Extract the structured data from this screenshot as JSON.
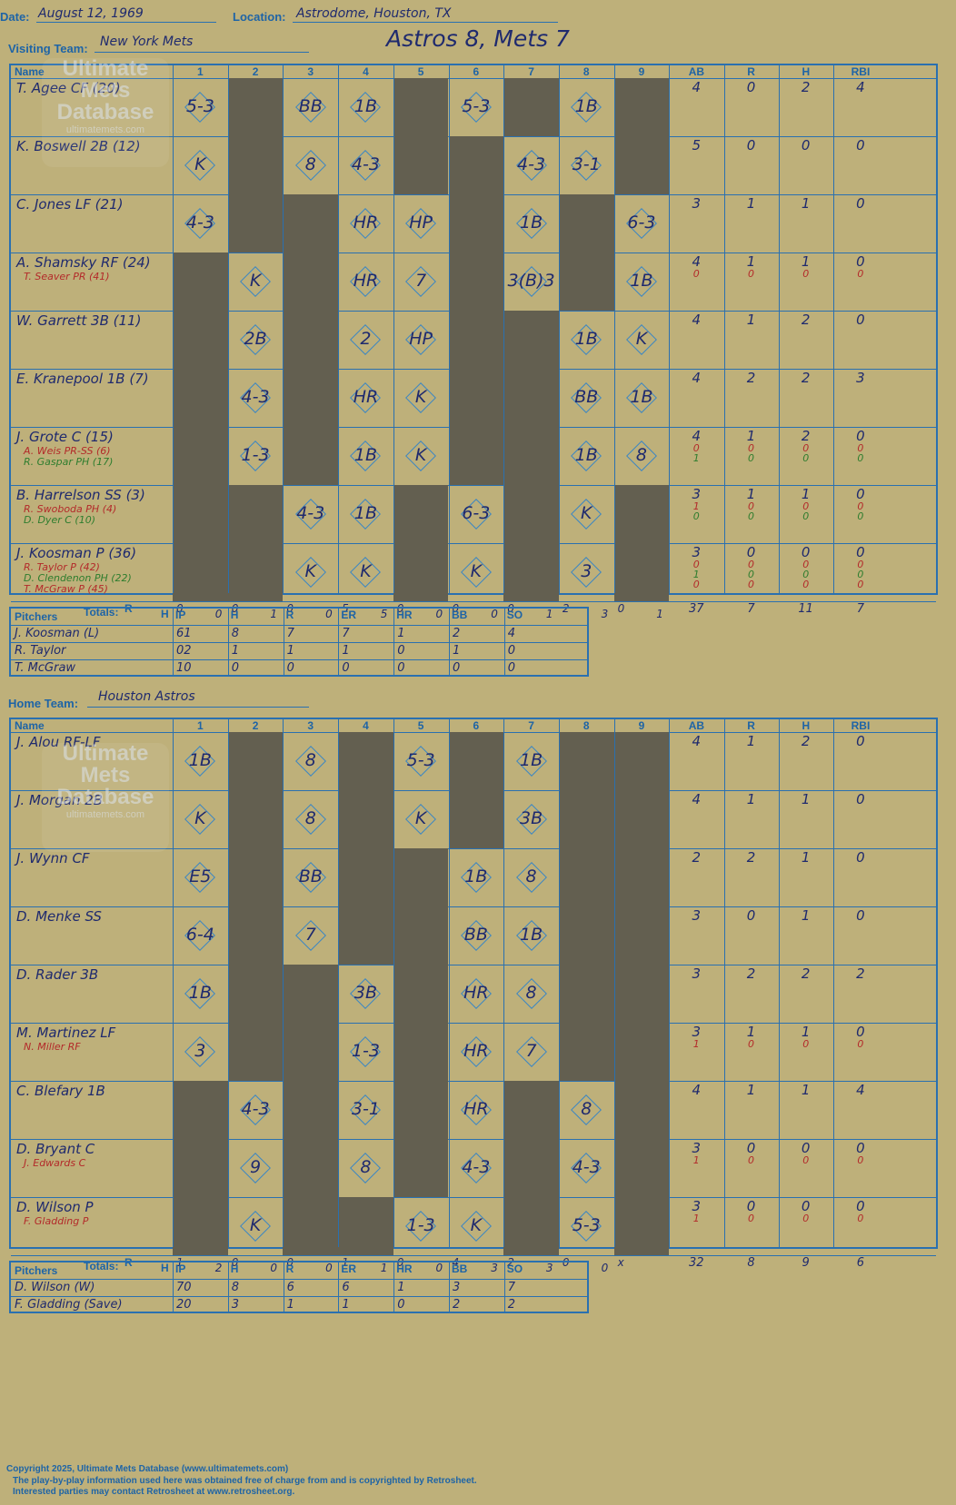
{
  "game": {
    "date_label": "Date:",
    "date": "August 12, 1969",
    "location_label": "Location:",
    "location": "Astrodome, Houston, TX",
    "visiting_label": "Visiting Team:",
    "visiting_team": "New York Mets",
    "home_label": "Home Team:",
    "home_team": "Houston Astros",
    "score_title": "Astros 8, Mets 7"
  },
  "headers": {
    "name": "Name",
    "innings": [
      "1",
      "2",
      "3",
      "4",
      "5",
      "6",
      "7",
      "8",
      "9"
    ],
    "stats": [
      "AB",
      "R",
      "H",
      "RBI"
    ],
    "totals": "Totals:",
    "runs_short": "R",
    "hits_short": "H",
    "pitchers": "Pitchers",
    "pitch_cols": [
      "IP",
      "H",
      "R",
      "ER",
      "HR",
      "BB",
      "SO"
    ]
  },
  "visitors": {
    "players": [
      {
        "name": "T. Agee CF (20)",
        "subs": [],
        "stats": [
          "4",
          "0",
          "2",
          "4"
        ],
        "sub_stats": []
      },
      {
        "name": "K. Boswell 2B (12)",
        "subs": [],
        "stats": [
          "5",
          "0",
          "0",
          "0"
        ],
        "sub_stats": []
      },
      {
        "name": "C. Jones LF (21)",
        "subs": [],
        "stats": [
          "3",
          "1",
          "1",
          "0"
        ],
        "sub_stats": []
      },
      {
        "name": "A. Shamsky RF (24)",
        "subs": [
          "T. Seaver PR (41)"
        ],
        "stats": [
          "4",
          "1",
          "1",
          "0"
        ],
        "sub_stats": [
          [
            "0",
            "0",
            "0",
            "0"
          ]
        ]
      },
      {
        "name": "W. Garrett 3B (11)",
        "subs": [],
        "stats": [
          "4",
          "1",
          "2",
          "0"
        ],
        "sub_stats": []
      },
      {
        "name": "E. Kranepool 1B (7)",
        "subs": [],
        "stats": [
          "4",
          "2",
          "2",
          "3"
        ],
        "sub_stats": []
      },
      {
        "name": "J. Grote C (15)",
        "subs": [
          "A. Weis PR-SS (6)",
          "R. Gaspar PH (17)"
        ],
        "stats": [
          "4",
          "1",
          "2",
          "0"
        ],
        "sub_stats": [
          [
            "0",
            "0",
            "0",
            "0"
          ],
          [
            "1",
            "0",
            "0",
            "0"
          ]
        ]
      },
      {
        "name": "B. Harrelson SS (3)",
        "subs": [
          "R. Swoboda PH (4)",
          "D. Dyer C (10)"
        ],
        "stats": [
          "3",
          "1",
          "1",
          "0"
        ],
        "sub_stats": [
          [
            "1",
            "0",
            "0",
            "0"
          ],
          [
            "0",
            "0",
            "0",
            "0"
          ]
        ]
      },
      {
        "name": "J. Koosman P (36)",
        "subs": [
          "R. Taylor P (42)",
          "D. Clendenon PH (22)",
          "T. McGraw P (45)"
        ],
        "stats": [
          "3",
          "0",
          "0",
          "0"
        ],
        "sub_stats": [
          [
            "0",
            "0",
            "0",
            "0"
          ],
          [
            "1",
            "0",
            "0",
            "0"
          ],
          [
            "0",
            "0",
            "0",
            "0"
          ]
        ]
      }
    ],
    "plays": [
      [
        [
          "1",
          "5-3"
        ],
        [
          "3",
          "BB"
        ],
        [
          "4",
          "1B"
        ],
        [
          "6",
          "5-3"
        ],
        [
          "8",
          "1B"
        ]
      ],
      [
        [
          "1",
          "K"
        ],
        [
          "3",
          "8"
        ],
        [
          "4",
          "4-3"
        ],
        [
          "7",
          "4-3"
        ],
        [
          "8",
          "3-1"
        ]
      ],
      [
        [
          "1",
          "4-3"
        ],
        [
          "4",
          "HR"
        ],
        [
          "5",
          "HP"
        ],
        [
          "7",
          "1B"
        ],
        [
          "9",
          "6-3"
        ]
      ],
      [
        [
          "2",
          "K"
        ],
        [
          "4",
          "HR"
        ],
        [
          "5",
          "7"
        ],
        [
          "7",
          "3(B)3"
        ],
        [
          "9",
          "1B"
        ]
      ],
      [
        [
          "2",
          "2B"
        ],
        [
          "4",
          "2"
        ],
        [
          "5",
          "HP"
        ],
        [
          "8",
          "1B"
        ],
        [
          "9",
          "K"
        ]
      ],
      [
        [
          "2",
          "4-3"
        ],
        [
          "4",
          "HR"
        ],
        [
          "5",
          "K"
        ],
        [
          "8",
          "BB"
        ],
        [
          "9",
          "1B"
        ]
      ],
      [
        [
          "2",
          "1-3"
        ],
        [
          "4",
          "1B"
        ],
        [
          "5",
          "K"
        ],
        [
          "8",
          "1B"
        ],
        [
          "9",
          "8"
        ]
      ],
      [
        [
          "3",
          "4-3"
        ],
        [
          "4",
          "1B"
        ],
        [
          "6",
          "6-3"
        ],
        [
          "8",
          "K"
        ]
      ],
      [
        [
          "3",
          "K"
        ],
        [
          "4",
          "K"
        ],
        [
          "6",
          "K"
        ],
        [
          "8",
          "3"
        ]
      ]
    ],
    "dark": [
      [
        2,
        5,
        7,
        9
      ],
      [
        2,
        5,
        6,
        9
      ],
      [
        2,
        3,
        6,
        8
      ],
      [
        1,
        3,
        6,
        8
      ],
      [
        1,
        3,
        6,
        7
      ],
      [
        1,
        3,
        6,
        7
      ],
      [
        1,
        3,
        6,
        7
      ],
      [
        1,
        2,
        5,
        7,
        9
      ],
      [
        1,
        2,
        5,
        7,
        9
      ]
    ],
    "totals": [
      [
        "0",
        "0"
      ],
      [
        "0",
        "1"
      ],
      [
        "0",
        "0"
      ],
      [
        "5",
        "5"
      ],
      [
        "0",
        "0"
      ],
      [
        "0",
        "0"
      ],
      [
        "0",
        "1"
      ],
      [
        "2",
        "3"
      ],
      [
        "0",
        "1"
      ]
    ],
    "totals_stats": [
      "37",
      "7",
      "11",
      "7"
    ],
    "pitchers": [
      {
        "name": "J. Koosman (L)",
        "stats": [
          "61",
          "8",
          "7",
          "7",
          "1",
          "2",
          "4"
        ]
      },
      {
        "name": "R. Taylor",
        "stats": [
          "02",
          "1",
          "1",
          "1",
          "0",
          "1",
          "0"
        ]
      },
      {
        "name": "T. McGraw",
        "stats": [
          "10",
          "0",
          "0",
          "0",
          "0",
          "0",
          "0"
        ]
      }
    ]
  },
  "home": {
    "players": [
      {
        "name": "J. Alou RF-LF",
        "subs": [],
        "stats": [
          "4",
          "1",
          "2",
          "0"
        ],
        "sub_stats": []
      },
      {
        "name": "J. Morgan 2B",
        "subs": [],
        "stats": [
          "4",
          "1",
          "1",
          "0"
        ],
        "sub_stats": []
      },
      {
        "name": "J. Wynn CF",
        "subs": [],
        "stats": [
          "2",
          "2",
          "1",
          "0"
        ],
        "sub_stats": []
      },
      {
        "name": "D. Menke SS",
        "subs": [],
        "stats": [
          "3",
          "0",
          "1",
          "0"
        ],
        "sub_stats": []
      },
      {
        "name": "D. Rader 3B",
        "subs": [],
        "stats": [
          "3",
          "2",
          "2",
          "2"
        ],
        "sub_stats": []
      },
      {
        "name": "M. Martinez LF",
        "subs": [
          "N. Miller RF"
        ],
        "stats": [
          "3",
          "1",
          "1",
          "0"
        ],
        "sub_stats": [
          [
            "1",
            "0",
            "0",
            "0"
          ]
        ]
      },
      {
        "name": "C. Blefary 1B",
        "subs": [],
        "stats": [
          "4",
          "1",
          "1",
          "4"
        ],
        "sub_stats": []
      },
      {
        "name": "D. Bryant C",
        "subs": [
          "J. Edwards C"
        ],
        "stats": [
          "3",
          "0",
          "0",
          "0"
        ],
        "sub_stats": [
          [
            "1",
            "0",
            "0",
            "0"
          ]
        ]
      },
      {
        "name": "D. Wilson P",
        "subs": [
          "F. Gladding P"
        ],
        "stats": [
          "3",
          "0",
          "0",
          "0"
        ],
        "sub_stats": [
          [
            "1",
            "0",
            "0",
            "0"
          ]
        ]
      }
    ],
    "plays": [
      [
        [
          "1",
          "1B"
        ],
        [
          "3",
          "8"
        ],
        [
          "5",
          "5-3"
        ],
        [
          "7",
          "1B"
        ]
      ],
      [
        [
          "1",
          "K"
        ],
        [
          "3",
          "8"
        ],
        [
          "5",
          "K"
        ],
        [
          "7",
          "3B"
        ]
      ],
      [
        [
          "1",
          "E5"
        ],
        [
          "3",
          "BB"
        ],
        [
          "6",
          "1B"
        ],
        [
          "7",
          "8"
        ]
      ],
      [
        [
          "1",
          "6-4"
        ],
        [
          "3",
          "7"
        ],
        [
          "6",
          "BB"
        ],
        [
          "7",
          "1B"
        ]
      ],
      [
        [
          "1",
          "1B"
        ],
        [
          "4",
          "3B"
        ],
        [
          "6",
          "HR"
        ],
        [
          "7",
          "8"
        ]
      ],
      [
        [
          "1",
          "3"
        ],
        [
          "4",
          "1-3"
        ],
        [
          "6",
          "HR"
        ],
        [
          "7",
          "7"
        ]
      ],
      [
        [
          "2",
          "4-3"
        ],
        [
          "4",
          "3-1"
        ],
        [
          "6",
          "HR"
        ],
        [
          "8",
          "8"
        ]
      ],
      [
        [
          "2",
          "9"
        ],
        [
          "4",
          "8"
        ],
        [
          "6",
          "4-3"
        ],
        [
          "8",
          "4-3"
        ]
      ],
      [
        [
          "2",
          "K"
        ],
        [
          "5",
          "1-3"
        ],
        [
          "6",
          "K"
        ],
        [
          "8",
          "5-3"
        ]
      ]
    ],
    "dark": [
      [
        2,
        4,
        6,
        8,
        9
      ],
      [
        2,
        4,
        6,
        8,
        9
      ],
      [
        2,
        4,
        5,
        8,
        9
      ],
      [
        2,
        4,
        5,
        8,
        9
      ],
      [
        2,
        3,
        5,
        8,
        9
      ],
      [
        2,
        3,
        5,
        8,
        9
      ],
      [
        1,
        3,
        5,
        7,
        9
      ],
      [
        1,
        3,
        5,
        7,
        9
      ],
      [
        1,
        3,
        4,
        7,
        9
      ]
    ],
    "totals": [
      [
        "1",
        "2"
      ],
      [
        "0",
        "0"
      ],
      [
        "0",
        "0"
      ],
      [
        "1",
        "1"
      ],
      [
        "0",
        "0"
      ],
      [
        "4",
        "3"
      ],
      [
        "2",
        "3"
      ],
      [
        "0",
        "0"
      ],
      [
        "x",
        ""
      ]
    ],
    "totals_stats": [
      "32",
      "8",
      "9",
      "6"
    ],
    "pitchers": [
      {
        "name": "D. Wilson (W)",
        "stats": [
          "70",
          "8",
          "6",
          "6",
          "1",
          "3",
          "7"
        ]
      },
      {
        "name": "F. Gladding (Save)",
        "stats": [
          "20",
          "3",
          "1",
          "1",
          "0",
          "2",
          "2"
        ]
      }
    ]
  },
  "watermark": {
    "line1": "Ultimate",
    "line2": "Mets",
    "line3": "Database",
    "url": "ultimatemets.com"
  },
  "footer": {
    "copyright": "Copyright 2025, Ultimate Mets Database (www.ultimatemets.com)",
    "line2": "The play-by-play information used here was obtained free of charge from and is copyrighted by Retrosheet.",
    "line3": "Interested parties may contact Retrosheet at www.retrosheet.org."
  }
}
